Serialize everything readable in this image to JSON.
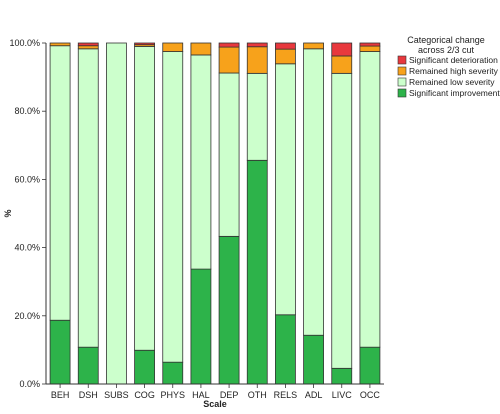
{
  "chart_data": {
    "type": "bar",
    "stacked": true,
    "xlabel": "Scale",
    "ylabel": "%",
    "ylim": [
      0,
      100
    ],
    "yticks": [
      0,
      20,
      40,
      60,
      80,
      100
    ],
    "ytick_labels": [
      "0.0%",
      "20.0%",
      "40.0%",
      "60.0%",
      "80.0%",
      "100.0%"
    ],
    "categories": [
      "BEH",
      "DSH",
      "SUBS",
      "COG",
      "PHYS",
      "HAL",
      "DEP",
      "OTH",
      "RELS",
      "ADL",
      "LIVC",
      "OCC"
    ],
    "legend": {
      "title_lines": [
        "Categorical change",
        "across 2/3 cut"
      ],
      "placement": "right"
    },
    "series": [
      {
        "name": "Significant improvement",
        "color": "#2db34a",
        "values": [
          18.7,
          10.8,
          0.0,
          9.9,
          6.4,
          33.7,
          43.3,
          65.6,
          20.3,
          14.3,
          4.6,
          10.8
        ]
      },
      {
        "name": "Remained low severity",
        "color": "#ccffcc",
        "values": [
          80.5,
          87.5,
          100.0,
          89.1,
          91.1,
          62.8,
          47.9,
          25.5,
          73.6,
          84.0,
          86.5,
          86.7
        ]
      },
      {
        "name": "Remained high severity",
        "color": "#f7a21b",
        "values": [
          0.8,
          0.9,
          0.0,
          0.5,
          2.5,
          3.5,
          7.6,
          7.8,
          4.3,
          1.7,
          5.1,
          1.6
        ]
      },
      {
        "name": "Significant deterioration",
        "color": "#e8383d",
        "values": [
          0.0,
          0.8,
          0.0,
          0.5,
          0.0,
          0.0,
          1.2,
          1.1,
          1.8,
          0.0,
          3.8,
          0.9
        ]
      }
    ],
    "legend_order": [
      "Significant deterioration",
      "Remained high severity",
      "Remained low severity",
      "Significant improvement"
    ]
  }
}
